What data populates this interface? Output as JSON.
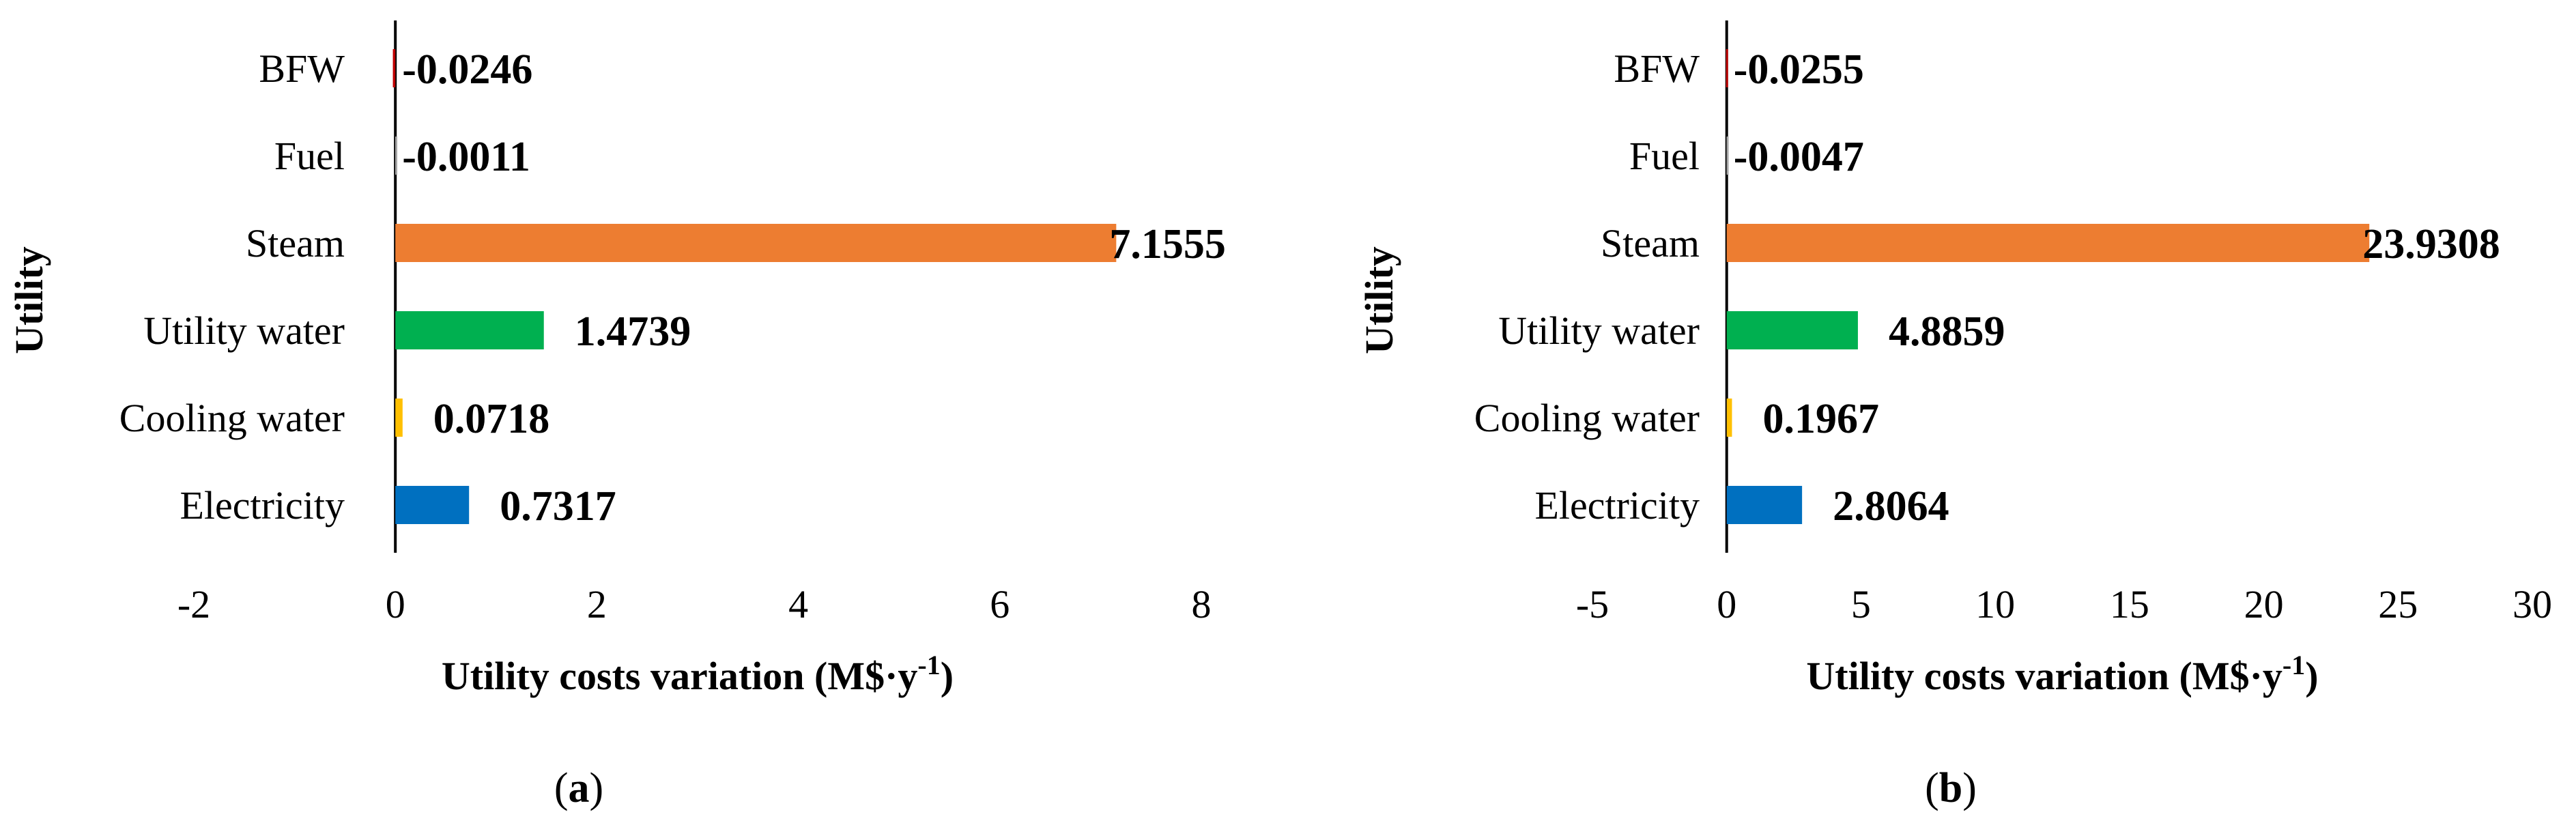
{
  "colors": {
    "BFW": "#C00000",
    "Fuel": "#A5A5A5",
    "Steam": "#ED7D31",
    "Utility water": "#00B050",
    "Cooling water": "#FFC000",
    "Electricity": "#0070C0"
  },
  "chart_data": [
    {
      "type": "bar",
      "orientation": "horizontal",
      "panel": "a",
      "xlabel": "Utility costs variation (M$·y",
      "xlabel_sup": "-1",
      "xlabel_close": ")",
      "ylabel": "Utility",
      "categories": [
        "BFW",
        "Fuel",
        "Steam",
        "Utility water",
        "Cooling water",
        "Electricity"
      ],
      "values": [
        -0.0246,
        -0.0011,
        7.1555,
        1.4739,
        0.0718,
        0.7317
      ],
      "value_labels": [
        "-0.0246",
        "-0.0011",
        "7.1555",
        "1.4739",
        "0.0718",
        "0.7317"
      ],
      "xlim": [
        -2,
        8
      ],
      "xticks": [
        -2,
        0,
        2,
        4,
        6,
        8
      ],
      "xtick_labels": [
        "-2",
        "0",
        "2",
        "4",
        "6",
        "8"
      ],
      "grid": false,
      "legend": "none"
    },
    {
      "type": "bar",
      "orientation": "horizontal",
      "panel": "b",
      "xlabel": "Utility costs variation (M$·y",
      "xlabel_sup": "-1",
      "xlabel_close": ")",
      "ylabel": "Utility",
      "categories": [
        "BFW",
        "Fuel",
        "Steam",
        "Utility water",
        "Cooling water",
        "Electricity"
      ],
      "values": [
        -0.0255,
        -0.0047,
        23.9308,
        4.8859,
        0.1967,
        2.8064
      ],
      "value_labels": [
        "-0.0255",
        "-0.0047",
        "23.9308",
        "4.8859",
        "0.1967",
        "2.8064"
      ],
      "xlim": [
        -5,
        30
      ],
      "xticks": [
        -5,
        0,
        5,
        10,
        15,
        20,
        25,
        30
      ],
      "xtick_labels": [
        "-5",
        "0",
        "5",
        "10",
        "15",
        "20",
        "25",
        "30"
      ],
      "grid": false,
      "legend": "none"
    }
  ],
  "captions": [
    {
      "open": "(",
      "letter": "a",
      "close": ")"
    },
    {
      "open": "(",
      "letter": "b",
      "close": ")"
    }
  ]
}
